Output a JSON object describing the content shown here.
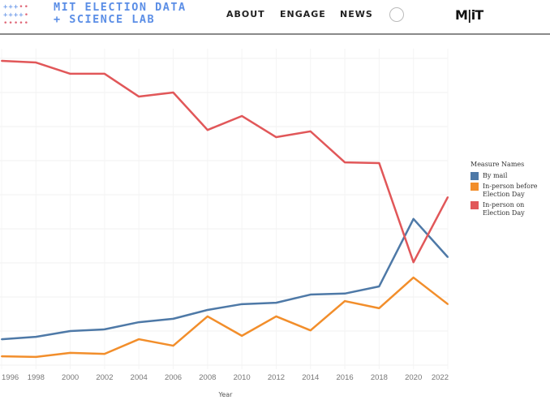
{
  "header": {
    "logo_line1": "MIT ELECTION DATA",
    "logo_line2": "+ SCIENCE LAB",
    "nav": [
      "ABOUT",
      "ENGAGE",
      "NEWS"
    ],
    "search_icon": "search-icon",
    "mit_logo": "MIT"
  },
  "chart_data": {
    "type": "line",
    "xlabel": "Year",
    "ylabel": "",
    "x": [
      1996,
      1998,
      2000,
      2002,
      2004,
      2006,
      2008,
      2010,
      2012,
      2014,
      2016,
      2018,
      2020,
      2022
    ],
    "ylim": [
      0,
      90
    ],
    "grid": true,
    "legend_title": "Measure Names",
    "legend_placement": "right",
    "series": [
      {
        "name": "By mail",
        "color": "#4e79a7",
        "values": [
          7.6,
          8.3,
          10,
          10.5,
          12.6,
          13.6,
          16.2,
          17.9,
          18.3,
          20.7,
          21,
          23.1,
          42.9,
          31.7
        ]
      },
      {
        "name": "In-person before Election Day",
        "color": "#f28e2b",
        "values": [
          2.6,
          2.4,
          3.6,
          3.3,
          7.6,
          5.7,
          14.3,
          8.6,
          14.3,
          10.2,
          18.8,
          16.7,
          25.7,
          17.9
        ]
      },
      {
        "name": "In-person on Election Day",
        "color": "#e15759",
        "values": [
          89.3,
          88.8,
          85.5,
          85.5,
          78.8,
          80,
          69,
          73.1,
          66.9,
          68.6,
          59.5,
          59.3,
          30.2,
          49.3
        ]
      }
    ]
  }
}
